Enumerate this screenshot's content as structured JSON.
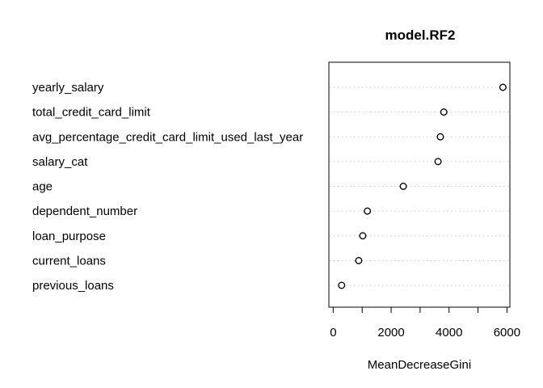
{
  "chart_data": {
    "type": "scatter",
    "title": "model.RF2",
    "xlabel": "MeanDecreaseGini",
    "ylabel": "",
    "xlim": [
      -150,
      6100
    ],
    "xticks": [
      0,
      2000,
      4000,
      6000
    ],
    "minor_xticks": [
      1000,
      3000,
      5000
    ],
    "grid": "dotted horizontal guides per variable",
    "points": [
      {
        "label": "yearly_salary",
        "value": 5860
      },
      {
        "label": "total_credit_card_limit",
        "value": 3820
      },
      {
        "label": "avg_percentage_credit_card_limit_used_last_year",
        "value": 3700
      },
      {
        "label": "salary_cat",
        "value": 3620
      },
      {
        "label": "age",
        "value": 2420
      },
      {
        "label": "dependent_number",
        "value": 1180
      },
      {
        "label": "loan_purpose",
        "value": 1020
      },
      {
        "label": "current_loans",
        "value": 880
      },
      {
        "label": "previous_loans",
        "value": 290
      }
    ]
  }
}
